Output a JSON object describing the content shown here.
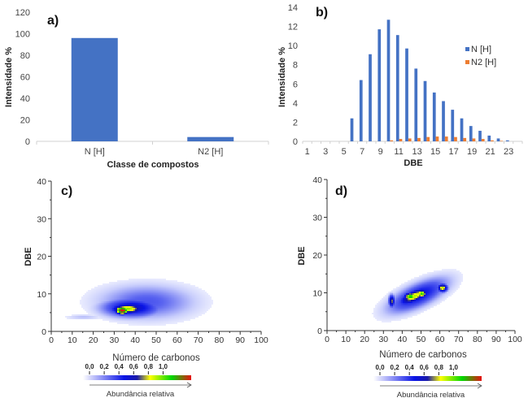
{
  "chart_data": [
    {
      "id": "a",
      "type": "bar",
      "panel_label": "a)",
      "title": "",
      "xlabel": "Classe de compostos",
      "ylabel": "Intensidade %",
      "categories": [
        "N [H]",
        "N2 [H]"
      ],
      "values": [
        96,
        4
      ],
      "yticks": [
        0,
        20,
        40,
        60,
        80,
        100,
        120
      ],
      "ylim": [
        0,
        120
      ],
      "color": "#4472C4",
      "grid": false
    },
    {
      "id": "b",
      "type": "bar",
      "panel_label": "b)",
      "title": "",
      "xlabel": "DBE",
      "ylabel": "Intensidade %",
      "categories": [
        1,
        2,
        3,
        4,
        5,
        6,
        7,
        8,
        9,
        10,
        11,
        12,
        13,
        14,
        15,
        16,
        17,
        18,
        19,
        20,
        21,
        22,
        23,
        24
      ],
      "xtick_labels": [
        "1",
        "3",
        "5",
        "7",
        "9",
        "11",
        "13",
        "15",
        "17",
        "19",
        "21",
        "23"
      ],
      "yticks": [
        0,
        2,
        4,
        6,
        8,
        10,
        12,
        14
      ],
      "ylim": [
        0,
        14
      ],
      "series": [
        {
          "name": "N [H]",
          "color": "#4472C4",
          "values": [
            0,
            0,
            0,
            0,
            0,
            2.4,
            6.4,
            9.1,
            11.7,
            12.7,
            11.1,
            9.7,
            7.6,
            6.3,
            5.1,
            4.2,
            3.3,
            2.4,
            1.6,
            1.1,
            0.6,
            0.3,
            0.1,
            0
          ]
        },
        {
          "name": "N2 [H]",
          "color": "#ED7D31",
          "values": [
            0,
            0,
            0,
            0,
            0,
            0,
            0,
            0,
            0,
            0.1,
            0.25,
            0.3,
            0.35,
            0.45,
            0.5,
            0.5,
            0.45,
            0.35,
            0.3,
            0.25,
            0.1,
            0.05,
            0,
            0
          ]
        }
      ],
      "legend": "right",
      "grid": false
    },
    {
      "id": "c",
      "type": "heatmap",
      "panel_label": "c)",
      "xlabel": "Número de carbonos",
      "ylabel": "DBE",
      "xlim": [
        0,
        100
      ],
      "ylim": [
        0,
        40
      ],
      "xticks": [
        0,
        10,
        20,
        30,
        40,
        50,
        60,
        70,
        80,
        90,
        100
      ],
      "yticks": [
        0,
        10,
        20,
        30,
        40
      ],
      "clusters": [
        {
          "x": 45,
          "y": 8,
          "sx": 16,
          "sy": 3.2,
          "w": 0.28
        },
        {
          "x": 38,
          "y": 6.5,
          "sx": 10,
          "sy": 1.8,
          "w": 0.5
        },
        {
          "x": 36,
          "y": 6.2,
          "sx": 6,
          "sy": 1.1,
          "w": 0.72
        },
        {
          "x": 33.5,
          "y": 5.8,
          "sx": 2.5,
          "sy": 0.8,
          "w": 1.05
        },
        {
          "x": 15,
          "y": 4,
          "sx": 6,
          "sy": 0.5,
          "w": 0.12
        }
      ],
      "colorbar": {
        "ticks": [
          "0,0",
          "0,2",
          "0,4",
          "0,6",
          "0,8",
          "1,0"
        ],
        "label": "Abundância relativa",
        "colors": [
          "#ffffff",
          "#6e74f2",
          "#0a14e6",
          "#1a1aa8",
          "#ffff00",
          "#00e000",
          "#e02020"
        ]
      }
    },
    {
      "id": "d",
      "type": "heatmap",
      "panel_label": "d)",
      "xlabel": "Número de carbonos",
      "ylabel": "DBE",
      "xlim": [
        0,
        100
      ],
      "ylim": [
        0,
        40
      ],
      "xticks": [
        0,
        10,
        20,
        30,
        40,
        50,
        60,
        70,
        80,
        90,
        100
      ],
      "yticks": [
        0,
        10,
        20,
        30,
        40
      ],
      "clusters": [
        {
          "x": 48,
          "y": 9.5,
          "sx": 11,
          "sy": 2.3,
          "w": 0.45,
          "slope": 0.2
        },
        {
          "x": 46,
          "y": 9.3,
          "sx": 6,
          "sy": 1.3,
          "w": 0.7,
          "slope": 0.2
        },
        {
          "x": 44,
          "y": 9.2,
          "sx": 2.5,
          "sy": 0.8,
          "w": 0.85
        },
        {
          "x": 50,
          "y": 10,
          "sx": 2,
          "sy": 0.8,
          "w": 0.8
        },
        {
          "x": 61,
          "y": 11.5,
          "sx": 2,
          "sy": 0.8,
          "w": 0.7
        },
        {
          "x": 34,
          "y": 8,
          "sx": 1.2,
          "sy": 1.2,
          "w": 0.6
        }
      ],
      "colorbar": {
        "ticks": [
          "0,0",
          "0,2",
          "0,4",
          "0,6",
          "0,8",
          "1,0"
        ],
        "label": "Abundância relativa",
        "colors": [
          "#ffffff",
          "#6e74f2",
          "#0a14e6",
          "#1a1aa8",
          "#ffff00",
          "#00e000",
          "#e02020"
        ]
      }
    }
  ]
}
